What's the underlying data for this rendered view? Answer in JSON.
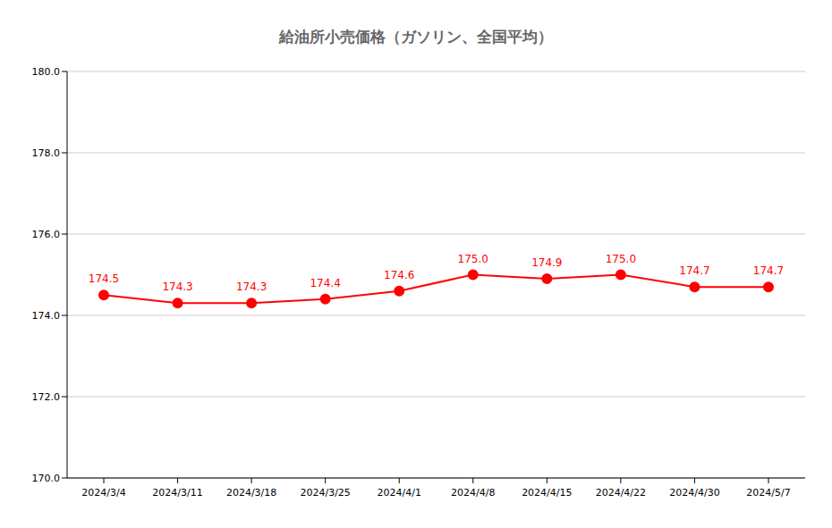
{
  "chart_data": {
    "type": "line",
    "title": "給油所小売価格（ガソリン、全国平均）",
    "categories": [
      "2024/3/4",
      "2024/3/11",
      "2024/3/18",
      "2024/3/25",
      "2024/4/1",
      "2024/4/8",
      "2024/4/15",
      "2024/4/22",
      "2024/4/30",
      "2024/5/7"
    ],
    "values": [
      174.5,
      174.3,
      174.3,
      174.4,
      174.6,
      175.0,
      174.9,
      175.0,
      174.7,
      174.7
    ],
    "value_labels": [
      "174.5",
      "174.3",
      "174.3",
      "174.4",
      "174.6",
      "175.0",
      "174.9",
      "175.0",
      "174.7",
      "174.7"
    ],
    "color": "#ff0000",
    "marker": "circle",
    "ylim": [
      170,
      180
    ],
    "yticks": [
      {
        "value": 170,
        "label": "170.0"
      },
      {
        "value": 172,
        "label": "172.0"
      },
      {
        "value": 174,
        "label": "174.0"
      },
      {
        "value": 176,
        "label": "176.0"
      },
      {
        "value": 178,
        "label": "178.0"
      },
      {
        "value": 180,
        "label": "180.0"
      }
    ],
    "grid": true,
    "data_labels": true
  }
}
